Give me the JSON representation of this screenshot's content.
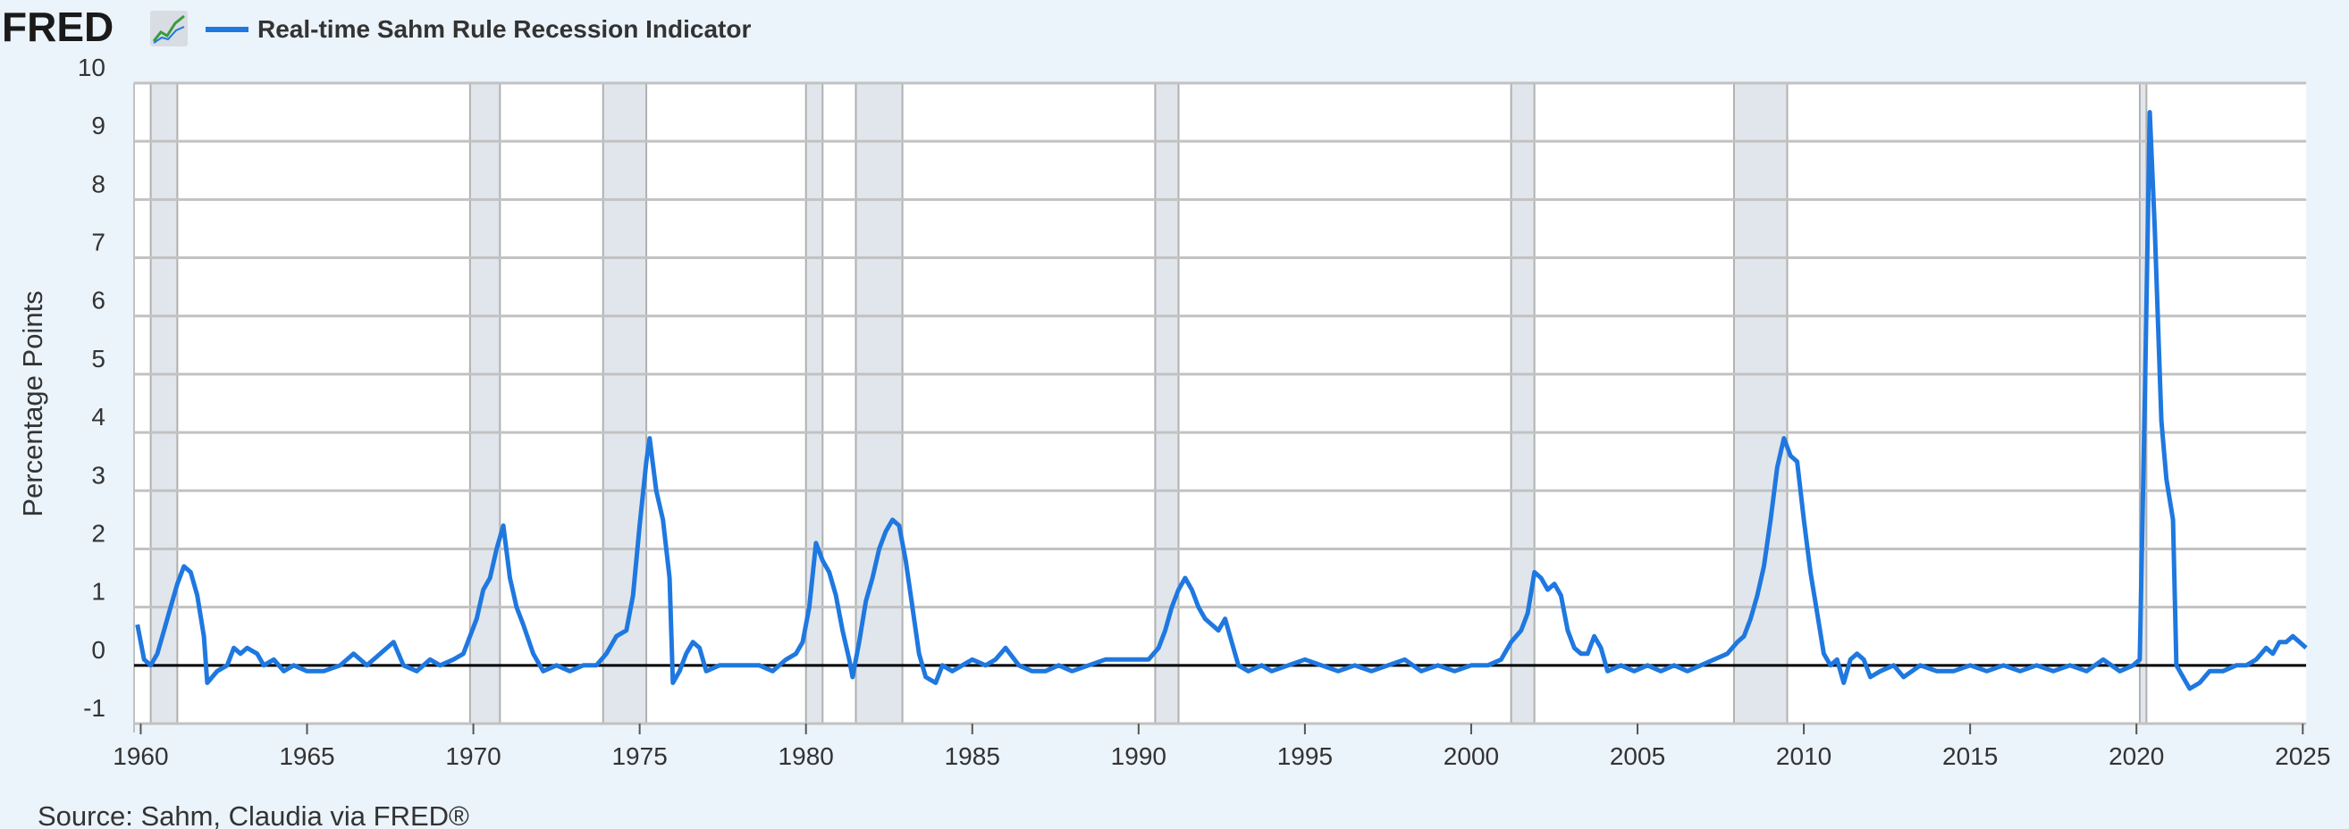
{
  "header": {
    "logo_text": "FRED",
    "logo_icon": "line-chart-icon",
    "legend_label": "Real-time Sahm Rule Recession Indicator"
  },
  "source": "Source: Sahm, Claudia via FRED®",
  "colors": {
    "background": "#ebf3fb",
    "plot_bg": "#ffffff",
    "line": "#1f78e0",
    "recession": "#e1e6ec",
    "grid": "#c2c2c2",
    "zero_line": "#000000",
    "logo": "#1a1a1a"
  },
  "chart_data": {
    "type": "line",
    "title": "",
    "xlabel": "",
    "ylabel": "Percentage Points",
    "xlim": [
      1959.8,
      2025.1
    ],
    "ylim": [
      -1,
      10
    ],
    "x_ticks": [
      "1960",
      "1965",
      "1970",
      "1975",
      "1980",
      "1985",
      "1990",
      "1995",
      "2000",
      "2005",
      "2010",
      "2015",
      "2020",
      "2025"
    ],
    "y_ticks": [
      "-1",
      "0",
      "1",
      "2",
      "3",
      "4",
      "5",
      "6",
      "7",
      "8",
      "9",
      "10"
    ],
    "grid": true,
    "legend": "top-left",
    "recessions": [
      [
        1960.3,
        1961.1
      ],
      [
        1969.9,
        1970.8
      ],
      [
        1973.9,
        1975.2
      ],
      [
        1980.0,
        1980.5
      ],
      [
        1981.5,
        1982.9
      ],
      [
        1990.5,
        1991.2
      ],
      [
        2001.2,
        2001.9
      ],
      [
        2007.9,
        2009.5
      ],
      [
        2020.1,
        2020.3
      ]
    ],
    "series": [
      {
        "name": "Real-time Sahm Rule Recession Indicator",
        "points": [
          [
            1959.9,
            0.7
          ],
          [
            1960.1,
            0.1
          ],
          [
            1960.3,
            0.0
          ],
          [
            1960.5,
            0.2
          ],
          [
            1960.7,
            0.6
          ],
          [
            1960.9,
            1.0
          ],
          [
            1961.1,
            1.4
          ],
          [
            1961.3,
            1.7
          ],
          [
            1961.5,
            1.6
          ],
          [
            1961.7,
            1.2
          ],
          [
            1961.9,
            0.5
          ],
          [
            1962.0,
            -0.3
          ],
          [
            1962.3,
            -0.1
          ],
          [
            1962.6,
            0.0
          ],
          [
            1962.8,
            0.3
          ],
          [
            1963.0,
            0.2
          ],
          [
            1963.2,
            0.3
          ],
          [
            1963.5,
            0.2
          ],
          [
            1963.7,
            0.0
          ],
          [
            1964.0,
            0.1
          ],
          [
            1964.3,
            -0.1
          ],
          [
            1964.6,
            0.0
          ],
          [
            1965.0,
            -0.1
          ],
          [
            1965.5,
            -0.1
          ],
          [
            1966.0,
            0.0
          ],
          [
            1966.4,
            0.2
          ],
          [
            1966.8,
            0.0
          ],
          [
            1967.2,
            0.2
          ],
          [
            1967.6,
            0.4
          ],
          [
            1967.9,
            0.0
          ],
          [
            1968.3,
            -0.1
          ],
          [
            1968.7,
            0.1
          ],
          [
            1969.0,
            0.0
          ],
          [
            1969.4,
            0.1
          ],
          [
            1969.7,
            0.2
          ],
          [
            1969.9,
            0.5
          ],
          [
            1970.1,
            0.8
          ],
          [
            1970.3,
            1.3
          ],
          [
            1970.5,
            1.5
          ],
          [
            1970.7,
            2.0
          ],
          [
            1970.9,
            2.4
          ],
          [
            1971.1,
            1.5
          ],
          [
            1971.3,
            1.0
          ],
          [
            1971.5,
            0.7
          ],
          [
            1971.8,
            0.2
          ],
          [
            1972.1,
            -0.1
          ],
          [
            1972.5,
            0.0
          ],
          [
            1972.9,
            -0.1
          ],
          [
            1973.3,
            0.0
          ],
          [
            1973.7,
            0.0
          ],
          [
            1974.0,
            0.2
          ],
          [
            1974.3,
            0.5
          ],
          [
            1974.6,
            0.6
          ],
          [
            1974.8,
            1.2
          ],
          [
            1975.0,
            2.4
          ],
          [
            1975.2,
            3.5
          ],
          [
            1975.3,
            3.9
          ],
          [
            1975.5,
            3.0
          ],
          [
            1975.7,
            2.5
          ],
          [
            1975.9,
            1.5
          ],
          [
            1976.0,
            -0.3
          ],
          [
            1976.2,
            -0.1
          ],
          [
            1976.4,
            0.2
          ],
          [
            1976.6,
            0.4
          ],
          [
            1976.8,
            0.3
          ],
          [
            1977.0,
            -0.1
          ],
          [
            1977.4,
            0.0
          ],
          [
            1977.8,
            0.0
          ],
          [
            1978.2,
            0.0
          ],
          [
            1978.6,
            0.0
          ],
          [
            1979.0,
            -0.1
          ],
          [
            1979.4,
            0.1
          ],
          [
            1979.7,
            0.2
          ],
          [
            1979.9,
            0.4
          ],
          [
            1980.1,
            1.0
          ],
          [
            1980.3,
            2.1
          ],
          [
            1980.5,
            1.8
          ],
          [
            1980.7,
            1.6
          ],
          [
            1980.9,
            1.2
          ],
          [
            1981.1,
            0.6
          ],
          [
            1981.3,
            0.1
          ],
          [
            1981.4,
            -0.2
          ],
          [
            1981.6,
            0.4
          ],
          [
            1981.8,
            1.1
          ],
          [
            1982.0,
            1.5
          ],
          [
            1982.2,
            2.0
          ],
          [
            1982.4,
            2.3
          ],
          [
            1982.6,
            2.5
          ],
          [
            1982.8,
            2.4
          ],
          [
            1983.0,
            1.8
          ],
          [
            1983.2,
            1.0
          ],
          [
            1983.4,
            0.2
          ],
          [
            1983.6,
            -0.2
          ],
          [
            1983.9,
            -0.3
          ],
          [
            1984.1,
            0.0
          ],
          [
            1984.4,
            -0.1
          ],
          [
            1984.7,
            0.0
          ],
          [
            1985.0,
            0.1
          ],
          [
            1985.4,
            0.0
          ],
          [
            1985.7,
            0.1
          ],
          [
            1986.0,
            0.3
          ],
          [
            1986.4,
            0.0
          ],
          [
            1986.8,
            -0.1
          ],
          [
            1987.2,
            -0.1
          ],
          [
            1987.6,
            0.0
          ],
          [
            1988.0,
            -0.1
          ],
          [
            1988.5,
            0.0
          ],
          [
            1989.0,
            0.1
          ],
          [
            1989.5,
            0.1
          ],
          [
            1989.9,
            0.1
          ],
          [
            1990.3,
            0.1
          ],
          [
            1990.6,
            0.3
          ],
          [
            1990.8,
            0.6
          ],
          [
            1991.0,
            1.0
          ],
          [
            1991.2,
            1.3
          ],
          [
            1991.4,
            1.5
          ],
          [
            1991.6,
            1.3
          ],
          [
            1991.8,
            1.0
          ],
          [
            1992.0,
            0.8
          ],
          [
            1992.2,
            0.7
          ],
          [
            1992.4,
            0.6
          ],
          [
            1992.6,
            0.8
          ],
          [
            1992.8,
            0.4
          ],
          [
            1993.0,
            0.0
          ],
          [
            1993.3,
            -0.1
          ],
          [
            1993.7,
            0.0
          ],
          [
            1994.0,
            -0.1
          ],
          [
            1994.5,
            0.0
          ],
          [
            1995.0,
            0.1
          ],
          [
            1995.5,
            0.0
          ],
          [
            1996.0,
            -0.1
          ],
          [
            1996.5,
            0.0
          ],
          [
            1997.0,
            -0.1
          ],
          [
            1997.5,
            0.0
          ],
          [
            1998.0,
            0.1
          ],
          [
            1998.5,
            -0.1
          ],
          [
            1999.0,
            0.0
          ],
          [
            1999.5,
            -0.1
          ],
          [
            2000.0,
            0.0
          ],
          [
            2000.5,
            0.0
          ],
          [
            2000.9,
            0.1
          ],
          [
            2001.2,
            0.4
          ],
          [
            2001.5,
            0.6
          ],
          [
            2001.7,
            0.9
          ],
          [
            2001.9,
            1.6
          ],
          [
            2002.1,
            1.5
          ],
          [
            2002.3,
            1.3
          ],
          [
            2002.5,
            1.4
          ],
          [
            2002.7,
            1.2
          ],
          [
            2002.9,
            0.6
          ],
          [
            2003.1,
            0.3
          ],
          [
            2003.3,
            0.2
          ],
          [
            2003.5,
            0.2
          ],
          [
            2003.7,
            0.5
          ],
          [
            2003.9,
            0.3
          ],
          [
            2004.1,
            -0.1
          ],
          [
            2004.5,
            0.0
          ],
          [
            2004.9,
            -0.1
          ],
          [
            2005.3,
            0.0
          ],
          [
            2005.7,
            -0.1
          ],
          [
            2006.1,
            0.0
          ],
          [
            2006.5,
            -0.1
          ],
          [
            2006.9,
            0.0
          ],
          [
            2007.3,
            0.1
          ],
          [
            2007.7,
            0.2
          ],
          [
            2008.0,
            0.4
          ],
          [
            2008.2,
            0.5
          ],
          [
            2008.4,
            0.8
          ],
          [
            2008.6,
            1.2
          ],
          [
            2008.8,
            1.7
          ],
          [
            2009.0,
            2.5
          ],
          [
            2009.2,
            3.4
          ],
          [
            2009.4,
            3.9
          ],
          [
            2009.6,
            3.6
          ],
          [
            2009.8,
            3.5
          ],
          [
            2010.0,
            2.5
          ],
          [
            2010.2,
            1.6
          ],
          [
            2010.4,
            0.9
          ],
          [
            2010.6,
            0.2
          ],
          [
            2010.8,
            0.0
          ],
          [
            2011.0,
            0.1
          ],
          [
            2011.2,
            -0.3
          ],
          [
            2011.4,
            0.1
          ],
          [
            2011.6,
            0.2
          ],
          [
            2011.8,
            0.1
          ],
          [
            2012.0,
            -0.2
          ],
          [
            2012.3,
            -0.1
          ],
          [
            2012.7,
            0.0
          ],
          [
            2013.0,
            -0.2
          ],
          [
            2013.5,
            0.0
          ],
          [
            2014.0,
            -0.1
          ],
          [
            2014.5,
            -0.1
          ],
          [
            2015.0,
            0.0
          ],
          [
            2015.5,
            -0.1
          ],
          [
            2016.0,
            0.0
          ],
          [
            2016.5,
            -0.1
          ],
          [
            2017.0,
            0.0
          ],
          [
            2017.5,
            -0.1
          ],
          [
            2018.0,
            0.0
          ],
          [
            2018.5,
            -0.1
          ],
          [
            2019.0,
            0.1
          ],
          [
            2019.5,
            -0.1
          ],
          [
            2019.9,
            0.0
          ],
          [
            2020.1,
            0.1
          ],
          [
            2020.25,
            4.5
          ],
          [
            2020.4,
            9.5
          ],
          [
            2020.55,
            7.5
          ],
          [
            2020.75,
            4.2
          ],
          [
            2020.9,
            3.2
          ],
          [
            2021.1,
            2.5
          ],
          [
            2021.2,
            0.0
          ],
          [
            2021.4,
            -0.2
          ],
          [
            2021.6,
            -0.4
          ],
          [
            2021.9,
            -0.3
          ],
          [
            2022.2,
            -0.1
          ],
          [
            2022.6,
            -0.1
          ],
          [
            2023.0,
            0.0
          ],
          [
            2023.3,
            0.0
          ],
          [
            2023.6,
            0.1
          ],
          [
            2023.9,
            0.3
          ],
          [
            2024.1,
            0.2
          ],
          [
            2024.3,
            0.4
          ],
          [
            2024.5,
            0.4
          ],
          [
            2024.7,
            0.5
          ],
          [
            2024.9,
            0.4
          ],
          [
            2025.1,
            0.3
          ]
        ]
      }
    ]
  }
}
